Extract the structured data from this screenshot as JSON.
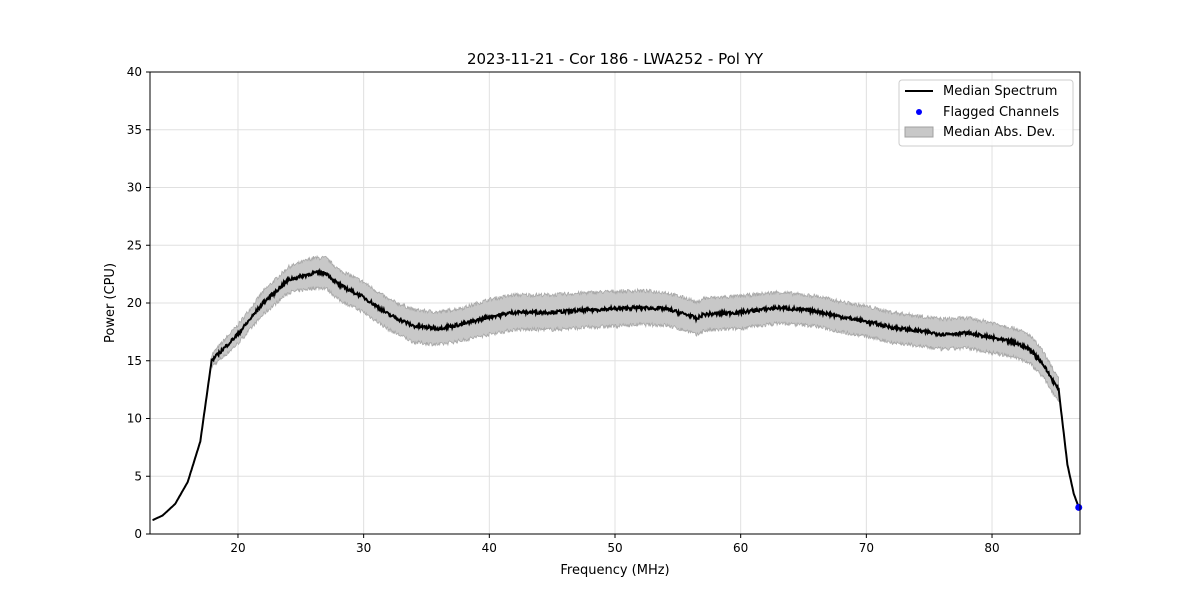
{
  "chart_data": {
    "type": "line",
    "title": "2023-11-21 - Cor 186 - LWA252 - Pol YY",
    "xlabel": "Frequency (MHz)",
    "ylabel": "Power (CPU)",
    "xlim": [
      13.0,
      87.0
    ],
    "ylim": [
      0,
      40
    ],
    "xticks": [
      20,
      30,
      40,
      50,
      60,
      70,
      80
    ],
    "yticks": [
      0,
      5,
      10,
      15,
      20,
      25,
      30,
      35,
      40
    ],
    "grid": true,
    "legend_position": "top-right",
    "legend": [
      "Median Spectrum",
      "Flagged Channels",
      "Median Abs. Dev."
    ],
    "colors": {
      "median": "#000000",
      "flagged": "#0000ff",
      "mad": "#c8c8c8",
      "mad_edge": "#a0a0a0"
    },
    "series": [
      {
        "name": "Median Spectrum",
        "x": [
          13.2,
          14,
          15,
          16,
          17,
          17.9,
          19,
          20,
          22,
          24,
          26,
          27,
          28,
          30,
          32,
          34,
          36,
          38,
          40,
          42,
          45,
          48,
          50,
          52,
          54,
          56,
          56.5,
          57,
          60,
          63,
          66,
          68,
          70,
          72,
          74,
          76,
          78,
          80,
          82,
          83,
          84,
          85,
          85.3,
          86,
          86.5,
          86.9
        ],
        "y": [
          1.2,
          1.6,
          2.6,
          4.5,
          8.0,
          15.0,
          16.2,
          17.3,
          20.0,
          22.0,
          22.6,
          22.6,
          21.6,
          20.5,
          19.0,
          18.0,
          17.8,
          18.2,
          18.8,
          19.2,
          19.2,
          19.4,
          19.5,
          19.6,
          19.5,
          18.9,
          18.6,
          19.0,
          19.2,
          19.6,
          19.3,
          18.8,
          18.4,
          17.9,
          17.6,
          17.3,
          17.4,
          17.0,
          16.5,
          16.0,
          14.8,
          13.0,
          12.5,
          6.0,
          3.5,
          2.3
        ]
      },
      {
        "name": "Median Abs. Dev.",
        "x": [
          17.9,
          19,
          20,
          22,
          24,
          26,
          28,
          30,
          32,
          34,
          36,
          38,
          40,
          45,
          50,
          55,
          56.5,
          60,
          65,
          70,
          75,
          80,
          83,
          85,
          85.3
        ],
        "half_width": [
          0.5,
          0.7,
          0.8,
          1.0,
          1.1,
          1.3,
          1.3,
          1.3,
          1.3,
          1.4,
          1.4,
          1.4,
          1.5,
          1.5,
          1.5,
          1.4,
          1.4,
          1.4,
          1.3,
          1.3,
          1.3,
          1.3,
          1.2,
          1.0,
          0.9
        ]
      },
      {
        "name": "Flagged Channels",
        "x": [
          86.9
        ],
        "y": [
          2.3
        ]
      }
    ]
  }
}
